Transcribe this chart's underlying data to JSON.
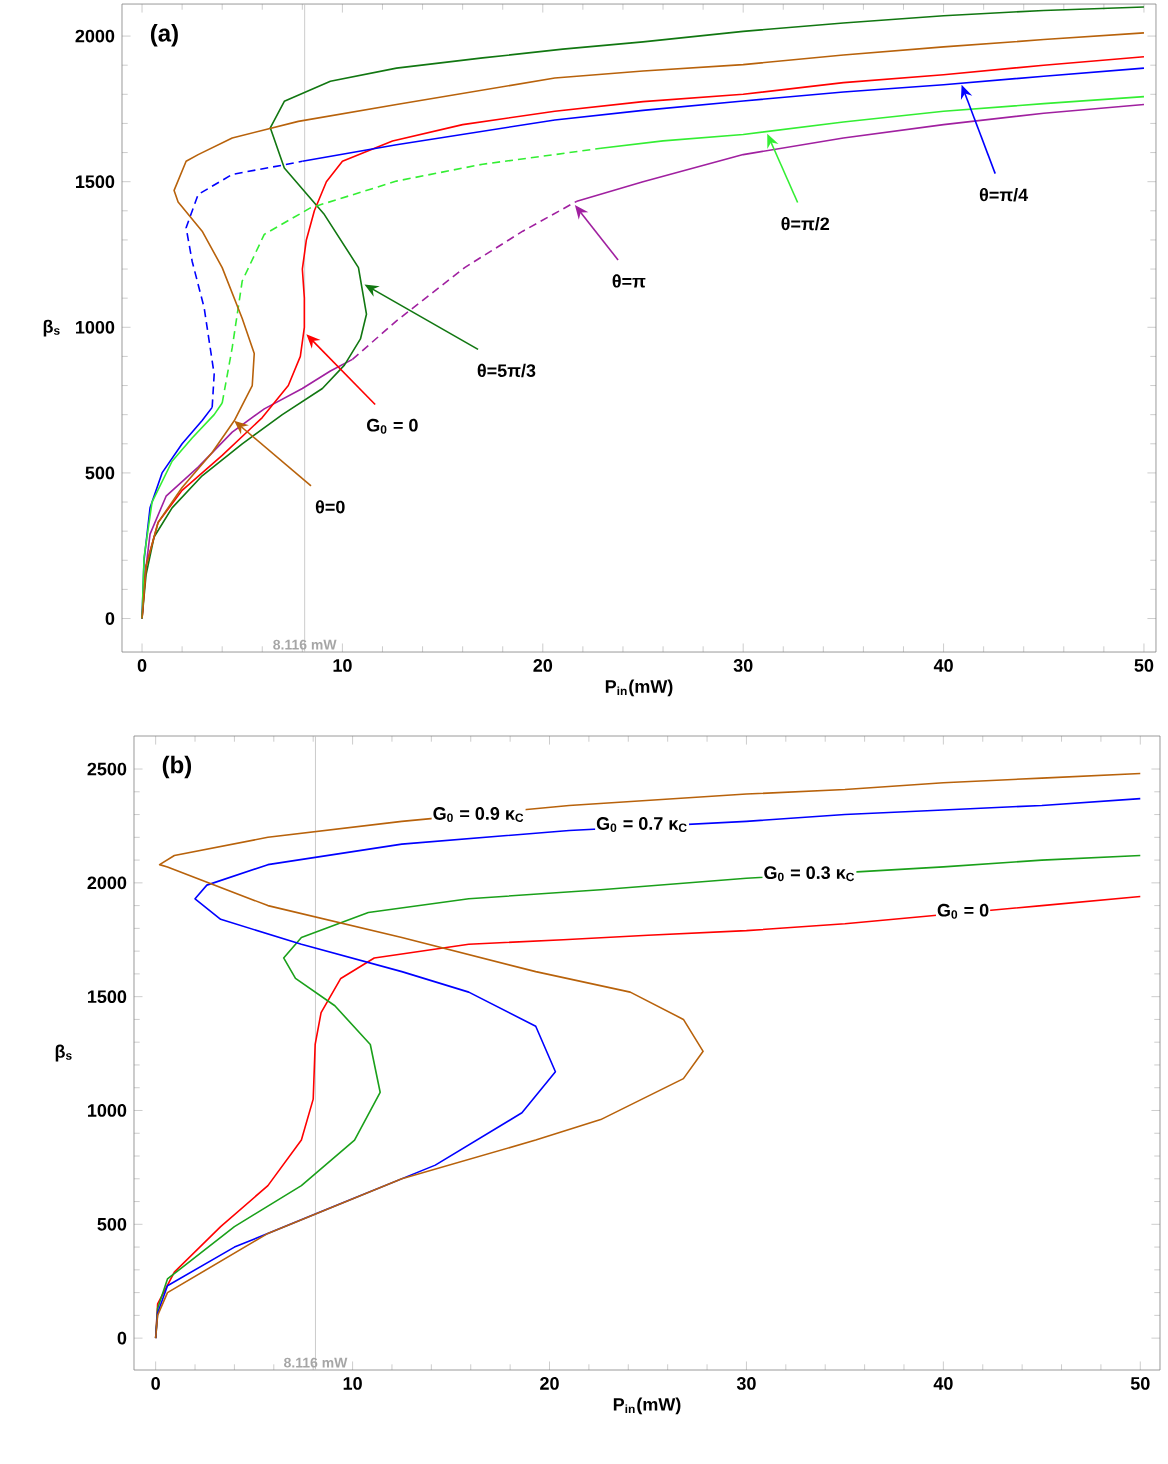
{
  "chart_data": [
    {
      "type": "line",
      "title": "(a)",
      "xlabel": "P$_{in}$(mW)",
      "ylabel": "β$_{s}$",
      "xlim": [
        -1,
        50.6
      ],
      "ylim": [
        -115,
        2110
      ],
      "xticks": [
        0,
        10,
        20,
        30,
        40,
        50
      ],
      "yticks": [
        0,
        500,
        1000,
        1500,
        2000
      ],
      "series": [
        {
          "color": "#a020a0",
          "line_style": "solid",
          "x": [
            0,
            0.1,
            0.4,
            1.2,
            2.8,
            4.5,
            6.1,
            8,
            9.4,
            10.5
          ],
          "values": [
            0,
            120,
            290,
            420,
            520,
            640,
            720,
            790,
            850,
            890
          ]
        },
        {
          "color": "#a020a0",
          "line_style": "dashed",
          "x": [
            10.5,
            12.7,
            16.1,
            19,
            21.7
          ],
          "values": [
            890,
            1022,
            1205,
            1330,
            1433
          ]
        },
        {
          "color": "#a020a0",
          "line_style": "solid",
          "x": [
            21.7,
            25,
            30,
            35,
            40,
            45,
            50
          ],
          "values": [
            1433,
            1500,
            1593,
            1650,
            1696,
            1735,
            1765
          ]
        },
        {
          "color": "#117711",
          "line_style": "solid",
          "x": [
            0,
            0.2,
            0.6,
            1.5,
            3,
            5,
            7,
            9,
            10.1,
            10.9,
            11.2,
            10.8,
            9.1,
            7.1,
            6.4,
            7.1,
            9.4,
            12.7,
            17,
            21,
            25,
            30,
            35,
            40,
            45,
            50
          ],
          "values": [
            0,
            150,
            280,
            380,
            490,
            600,
            700,
            790,
            870,
            960,
            1045,
            1205,
            1387,
            1547,
            1685,
            1776,
            1845,
            1890,
            1925,
            1955,
            1980,
            2016,
            2045,
            2070,
            2088,
            2100
          ]
        },
        {
          "color": "#ff0000",
          "line_style": "solid",
          "x": [
            0,
            0.2,
            0.8,
            2,
            4,
            6,
            7.3,
            7.9,
            8.1,
            8.1,
            8,
            8.2,
            8.6,
            9.2,
            10,
            12.5,
            16,
            20.6,
            25,
            30,
            35,
            40,
            45,
            50
          ],
          "values": [
            0,
            180,
            330,
            440,
            560,
            690,
            800,
            900,
            1000,
            1100,
            1200,
            1300,
            1400,
            1500,
            1570,
            1640,
            1696,
            1742,
            1775,
            1800,
            1840,
            1867,
            1900,
            1929
          ]
        },
        {
          "color": "#0000ff",
          "line_style": "solid",
          "x": [
            0,
            0.1,
            0.4,
            1,
            2,
            3,
            3.5
          ],
          "values": [
            0,
            200,
            380,
            500,
            600,
            680,
            725
          ]
        },
        {
          "color": "#0000ff",
          "line_style": "dashed",
          "x": [
            3.5,
            3.6,
            3.1,
            2.5,
            2.2,
            2.8,
            4.5,
            7.5,
            8
          ],
          "values": [
            725,
            839,
            1067,
            1227,
            1342,
            1456,
            1525,
            1563,
            1570
          ]
        },
        {
          "color": "#0000ff",
          "line_style": "solid",
          "x": [
            8,
            12.7,
            20.6,
            25,
            30,
            35,
            40,
            45,
            50
          ],
          "values": [
            1570,
            1627,
            1712,
            1745,
            1777,
            1808,
            1833,
            1862,
            1890
          ]
        },
        {
          "color": "#33ee33",
          "line_style": "solid",
          "x": [
            0,
            0.1,
            0.5,
            1.5,
            2.5,
            3.6,
            4
          ],
          "values": [
            0,
            210,
            400,
            540,
            620,
            700,
            740
          ]
        },
        {
          "color": "#33ee33",
          "line_style": "dashed",
          "x": [
            4,
            4.5,
            5,
            6.1,
            8.4,
            12.7,
            17,
            20.6,
            22.9
          ],
          "values": [
            740,
            930,
            1159,
            1319,
            1410,
            1502,
            1560,
            1593,
            1615
          ]
        },
        {
          "color": "#33ee33",
          "line_style": "solid",
          "x": [
            22.9,
            26,
            30,
            35,
            40,
            45,
            50
          ],
          "values": [
            1615,
            1640,
            1662,
            1705,
            1742,
            1768,
            1792
          ]
        },
        {
          "color": "#b8620b",
          "line_style": "solid",
          "x": [
            0,
            0.2,
            0.8,
            2,
            3.5,
            4.6,
            5.5,
            5.6,
            5,
            4,
            3,
            1.8,
            1.6,
            2.2,
            2.8,
            4.5,
            7.8,
            12.7,
            20.6,
            25,
            30,
            35,
            40,
            45,
            50
          ],
          "values": [
            0,
            180,
            330,
            450,
            570,
            679,
            800,
            910,
            1030,
            1205,
            1330,
            1430,
            1470,
            1570,
            1593,
            1650,
            1707,
            1765,
            1856,
            1880,
            1902,
            1935,
            1963,
            1988,
            2011
          ]
        }
      ],
      "annotations": [
        {
          "text": "θ=0",
          "x": 4.6,
          "y": 679
        },
        {
          "text": "G$_{0}$ = 0",
          "x": 8.2,
          "y": 976
        },
        {
          "text": "θ=5π/3",
          "x": 11.1,
          "y": 1147
        },
        {
          "text": "θ=π",
          "x": 21.6,
          "y": 1420
        },
        {
          "text": "θ=π/2",
          "x": 31.2,
          "y": 1665
        },
        {
          "text": "θ=π/4",
          "x": 40.9,
          "y": 1833
        }
      ],
      "ref_lines": [
        {
          "axis": "x",
          "value": 8.116,
          "label": "8.116 mW"
        }
      ]
    },
    {
      "type": "line",
      "title": "(b)",
      "xlabel": "P$_{in}$(mW)",
      "ylabel": "β$_{s}$",
      "xlim": [
        -1.1,
        51
      ],
      "ylim": [
        -140,
        2645
      ],
      "xticks": [
        0,
        10,
        20,
        30,
        40,
        50
      ],
      "yticks": [
        0,
        500,
        1000,
        1500,
        2000,
        2500
      ],
      "series": [
        {
          "color": "#ff0000",
          "x": [
            0,
            0.1,
            0.95,
            3.3,
            5.7,
            7.4,
            8,
            8.1,
            8.4,
            9.4,
            11.1,
            15.9,
            20.7,
            25,
            30,
            35,
            45,
            50
          ],
          "values": [
            0,
            150,
            290,
            490,
            670,
            870,
            1050,
            1290,
            1430,
            1580,
            1670,
            1730,
            1750,
            1770,
            1790,
            1820,
            1900,
            1940
          ]
        },
        {
          "color": "#1aa01a",
          "x": [
            0,
            0.1,
            0.6,
            4,
            7.4,
            10.1,
            11.4,
            10.9,
            9.1,
            7.1,
            6.5,
            7.4,
            10.8,
            15.9,
            22.6,
            30,
            40,
            45,
            50
          ],
          "values": [
            0,
            130,
            260,
            490,
            670,
            870,
            1080,
            1290,
            1460,
            1580,
            1670,
            1760,
            1870,
            1930,
            1970,
            2020,
            2070,
            2100,
            2120
          ]
        },
        {
          "color": "#0000ff",
          "x": [
            0,
            0.1,
            0.6,
            4,
            9.1,
            14.2,
            18.6,
            20.3,
            19.3,
            15.9,
            12.5,
            7.4,
            3.3,
            2,
            2.6,
            5.7,
            12.5,
            21,
            30,
            35,
            40,
            45,
            50
          ],
          "values": [
            0,
            110,
            230,
            400,
            580,
            760,
            990,
            1170,
            1370,
            1520,
            1610,
            1730,
            1840,
            1930,
            1990,
            2080,
            2170,
            2230,
            2270,
            2300,
            2320,
            2340,
            2370
          ]
        },
        {
          "color": "#b8620b",
          "x": [
            0,
            0.1,
            0.6,
            5.7,
            12.5,
            19.3,
            22.6,
            26.8,
            27.8,
            26.8,
            24.1,
            19.3,
            12.5,
            5.7,
            0.6,
            0.2,
            0.95,
            5.7,
            12.5,
            21,
            30,
            35,
            40,
            45,
            50
          ],
          "values": [
            0,
            100,
            200,
            460,
            700,
            870,
            960,
            1140,
            1260,
            1400,
            1520,
            1610,
            1760,
            1900,
            2070,
            2080,
            2120,
            2200,
            2270,
            2340,
            2390,
            2410,
            2440,
            2460,
            2480
          ]
        }
      ],
      "annotations": [
        {
          "text": "G$_{0}$ = 0.9 κ$_{C}$",
          "x": 16.4,
          "y": 2300
        },
        {
          "text": "G$_{0}$ = 0.7 κ$_{C}$",
          "x": 24.7,
          "y": 2256
        },
        {
          "text": "G$_{0}$ = 0.3 κ$_{C}$",
          "x": 33.2,
          "y": 2040
        },
        {
          "text": "G$_{0}$ = 0",
          "x": 41.0,
          "y": 1875
        }
      ],
      "ref_lines": [
        {
          "axis": "x",
          "value": 8.116,
          "label": "8.116 mW"
        }
      ]
    }
  ]
}
